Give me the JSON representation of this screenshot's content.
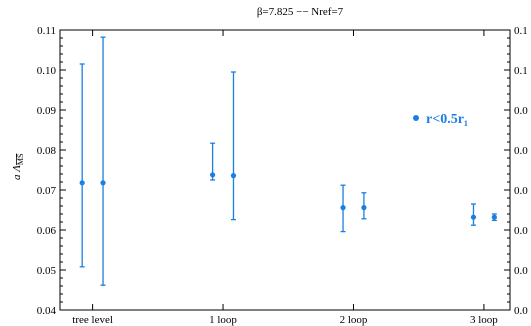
{
  "chart_data": {
    "type": "scatter",
    "title": "β=7.825 −− Nref=7",
    "ylabel": "a Λ_MS̄",
    "ylim": [
      0.04,
      0.11
    ],
    "y_ticks": [
      "0.04",
      "0.05",
      "0.06",
      "0.07",
      "0.08",
      "0.09",
      "0.10",
      "0.11"
    ],
    "right_ticks_visible": [
      "0.1",
      "0.1",
      "0.0",
      "0.0",
      "0.0",
      "0.0",
      "0.0",
      "0.0"
    ],
    "categories": [
      "tree level",
      "1 loop",
      "2 loop",
      "3 loop"
    ],
    "series": [
      {
        "name": "r<0.5r₁",
        "color": "#1a7fe0",
        "points": [
          {
            "x": 0.92,
            "y": 0.0718,
            "ylo": 0.0508,
            "yhi": 0.1015
          },
          {
            "x": 1.08,
            "y": 0.0718,
            "ylo": 0.0462,
            "yhi": 0.1082
          },
          {
            "x": 1.92,
            "y": 0.0738,
            "ylo": 0.0725,
            "yhi": 0.0817
          },
          {
            "x": 2.08,
            "y": 0.0736,
            "ylo": 0.0626,
            "yhi": 0.0995
          },
          {
            "x": 2.92,
            "y": 0.0656,
            "ylo": 0.0596,
            "yhi": 0.0712
          },
          {
            "x": 3.08,
            "y": 0.0656,
            "ylo": 0.0628,
            "yhi": 0.0693
          },
          {
            "x": 3.92,
            "y": 0.0632,
            "ylo": 0.0612,
            "yhi": 0.0665
          },
          {
            "x": 4.08,
            "y": 0.0632,
            "ylo": 0.0624,
            "yhi": 0.064
          }
        ]
      }
    ],
    "legend": {
      "label": "r<0.5r₁",
      "placement": "right"
    }
  }
}
